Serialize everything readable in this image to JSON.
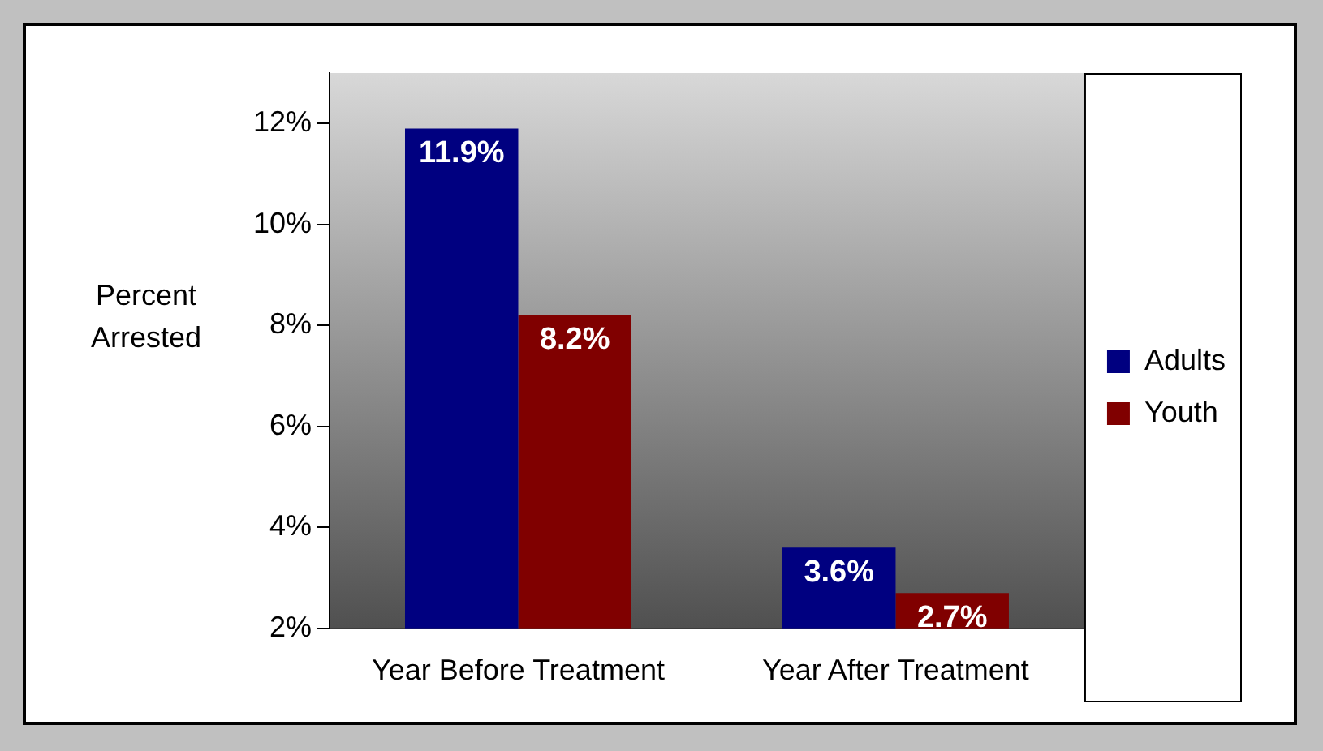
{
  "chart_data": {
    "type": "bar",
    "ylabel": "Percent Arrested",
    "categories": [
      "Year Before Treatment",
      "Year After Treatment"
    ],
    "series": [
      {
        "name": "Adults",
        "color": "#000080",
        "values": [
          11.9,
          3.6
        ],
        "value_labels": [
          "11.9%",
          "3.6%"
        ]
      },
      {
        "name": "Youth",
        "color": "#800000",
        "values": [
          8.2,
          2.7
        ],
        "value_labels": [
          "8.2%",
          "2.7%"
        ]
      }
    ],
    "ylim": [
      2,
      13
    ],
    "yticks": [
      {
        "value": 2,
        "label": "2%"
      },
      {
        "value": 4,
        "label": "4%"
      },
      {
        "value": 6,
        "label": "6%"
      },
      {
        "value": 8,
        "label": "8%"
      },
      {
        "value": 10,
        "label": "10%"
      },
      {
        "value": 12,
        "label": "12%"
      }
    ],
    "grid": false,
    "legend": "right"
  }
}
